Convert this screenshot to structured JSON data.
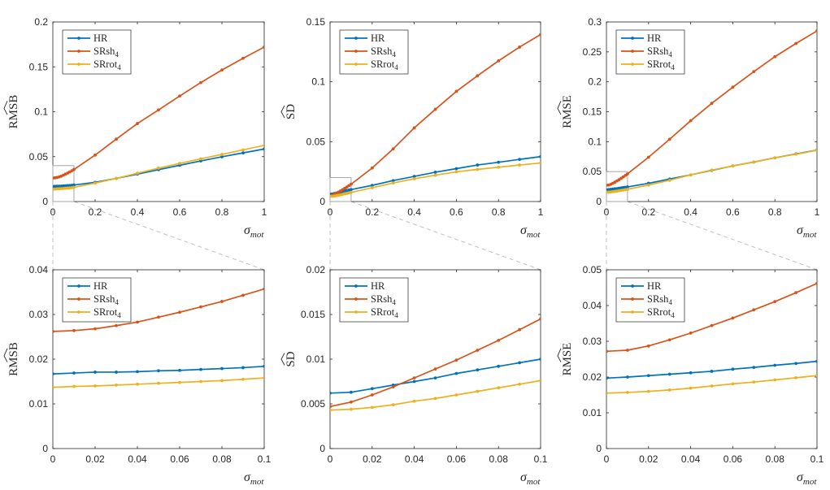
{
  "figure": {
    "xlabel_symbol": "σ",
    "xlabel_subscript": "mot",
    "legend_entries": [
      {
        "base": "HR",
        "sub": ""
      },
      {
        "base": "SRsh",
        "sub": "4"
      },
      {
        "base": "SRrot",
        "sub": "4"
      }
    ]
  },
  "colors": {
    "HR": "#0072bd",
    "SRsh4": "#d95319",
    "SRrot4": "#edb120",
    "axis": "#262626",
    "zoom_box": "#a6a6a6",
    "connector": "#bfbfbf"
  },
  "chart_data": [
    {
      "type": "line",
      "panel": "top-left",
      "title": "",
      "ylabel": "RMSB",
      "xlim": [
        0,
        1
      ],
      "ylim": [
        0,
        0.2
      ],
      "xticks": [
        0,
        0.2,
        0.4,
        0.6,
        0.8,
        1
      ],
      "xtick_labels": [
        "0",
        "0.2",
        "0.4",
        "0.6",
        "0.8",
        "1"
      ],
      "yticks": [
        0,
        0.05,
        0.1,
        0.15,
        0.2
      ],
      "ytick_labels": [
        "0",
        "0.05",
        "0.1",
        "0.15",
        "0.2"
      ],
      "legend_position": "top-left",
      "zoom_box": {
        "x": [
          0,
          0.1
        ],
        "y": [
          0,
          0.04
        ]
      },
      "series": [
        {
          "name": "HR",
          "x": [
            0,
            0.01,
            0.02,
            0.03,
            0.04,
            0.05,
            0.06,
            0.07,
            0.08,
            0.09,
            0.1,
            0.2,
            0.3,
            0.4,
            0.5,
            0.6,
            0.7,
            0.8,
            0.9,
            1.0
          ],
          "values": [
            0.0167,
            0.0169,
            0.0171,
            0.0171,
            0.0172,
            0.0174,
            0.0175,
            0.0177,
            0.0179,
            0.0181,
            0.0184,
            0.0214,
            0.0257,
            0.0305,
            0.0355,
            0.0404,
            0.0452,
            0.0498,
            0.0542,
            0.0585
          ]
        },
        {
          "name": "SRsh4",
          "x": [
            0,
            0.01,
            0.02,
            0.03,
            0.04,
            0.05,
            0.06,
            0.07,
            0.08,
            0.09,
            0.1,
            0.2,
            0.3,
            0.4,
            0.5,
            0.6,
            0.7,
            0.8,
            0.9,
            1.0
          ],
          "values": [
            0.0262,
            0.0264,
            0.0268,
            0.0275,
            0.0283,
            0.0294,
            0.0305,
            0.0317,
            0.0329,
            0.0343,
            0.0357,
            0.0517,
            0.0695,
            0.0868,
            0.102,
            0.1175,
            0.1325,
            0.1465,
            0.1595,
            0.172
          ]
        },
        {
          "name": "SRrot4",
          "x": [
            0,
            0.01,
            0.02,
            0.03,
            0.04,
            0.05,
            0.06,
            0.07,
            0.08,
            0.09,
            0.1,
            0.2,
            0.3,
            0.4,
            0.5,
            0.6,
            0.7,
            0.8,
            0.9,
            1.0
          ],
          "values": [
            0.0137,
            0.0139,
            0.014,
            0.0142,
            0.0144,
            0.0146,
            0.0148,
            0.015,
            0.0152,
            0.0155,
            0.0158,
            0.0205,
            0.0258,
            0.0315,
            0.0372,
            0.0425,
            0.0475,
            0.0525,
            0.0575,
            0.0625
          ]
        }
      ]
    },
    {
      "type": "line",
      "panel": "top-middle",
      "title": "",
      "ylabel": "SD",
      "xlim": [
        0,
        1
      ],
      "ylim": [
        0,
        0.15
      ],
      "xticks": [
        0,
        0.2,
        0.4,
        0.6,
        0.8,
        1
      ],
      "xtick_labels": [
        "0",
        "0.2",
        "0.4",
        "0.6",
        "0.8",
        "1"
      ],
      "yticks": [
        0,
        0.05,
        0.1,
        0.15
      ],
      "ytick_labels": [
        "0",
        "0.05",
        "0.1",
        "0.15"
      ],
      "legend_position": "top-left",
      "zoom_box": {
        "x": [
          0,
          0.1
        ],
        "y": [
          0,
          0.02
        ]
      },
      "series": [
        {
          "name": "HR",
          "x": [
            0,
            0.01,
            0.02,
            0.03,
            0.04,
            0.05,
            0.06,
            0.07,
            0.08,
            0.09,
            0.1,
            0.2,
            0.3,
            0.4,
            0.5,
            0.6,
            0.7,
            0.8,
            0.9,
            1.0
          ],
          "values": [
            0.0062,
            0.0063,
            0.0067,
            0.0071,
            0.0075,
            0.0079,
            0.0084,
            0.0088,
            0.0092,
            0.0096,
            0.01,
            0.0135,
            0.0175,
            0.021,
            0.0245,
            0.0275,
            0.0305,
            0.0328,
            0.0352,
            0.0375
          ]
        },
        {
          "name": "SRsh4",
          "x": [
            0,
            0.01,
            0.02,
            0.03,
            0.04,
            0.05,
            0.06,
            0.07,
            0.08,
            0.09,
            0.1,
            0.2,
            0.3,
            0.4,
            0.5,
            0.6,
            0.7,
            0.8,
            0.9,
            1.0
          ],
          "values": [
            0.0047,
            0.0052,
            0.006,
            0.0069,
            0.0079,
            0.0089,
            0.0099,
            0.011,
            0.0121,
            0.0133,
            0.0145,
            0.028,
            0.044,
            0.0615,
            0.077,
            0.092,
            0.105,
            0.1175,
            0.129,
            0.1395
          ]
        },
        {
          "name": "SRrot4",
          "x": [
            0,
            0.01,
            0.02,
            0.03,
            0.04,
            0.05,
            0.06,
            0.07,
            0.08,
            0.09,
            0.1,
            0.2,
            0.3,
            0.4,
            0.5,
            0.6,
            0.7,
            0.8,
            0.9,
            1.0
          ],
          "values": [
            0.0043,
            0.0044,
            0.0046,
            0.0049,
            0.0053,
            0.0056,
            0.006,
            0.0064,
            0.0068,
            0.0072,
            0.0076,
            0.0115,
            0.0155,
            0.019,
            0.022,
            0.0248,
            0.0268,
            0.0287,
            0.0305,
            0.0322
          ]
        }
      ]
    },
    {
      "type": "line",
      "panel": "top-right",
      "title": "",
      "ylabel": "RMSE",
      "xlim": [
        0,
        1
      ],
      "ylim": [
        0,
        0.3
      ],
      "xticks": [
        0,
        0.2,
        0.4,
        0.6,
        0.8,
        1
      ],
      "xtick_labels": [
        "0",
        "0.2",
        "0.4",
        "0.6",
        "0.8",
        "1"
      ],
      "yticks": [
        0,
        0.05,
        0.1,
        0.15,
        0.2,
        0.25,
        0.3
      ],
      "ytick_labels": [
        "0",
        "0.05",
        "0.1",
        "0.15",
        "0.2",
        "0.25",
        "0.3"
      ],
      "legend_position": "top-left",
      "zoom_box": {
        "x": [
          0,
          0.1
        ],
        "y": [
          0,
          0.05
        ]
      },
      "series": [
        {
          "name": "HR",
          "x": [
            0,
            0.01,
            0.02,
            0.03,
            0.04,
            0.05,
            0.06,
            0.07,
            0.08,
            0.09,
            0.1,
            0.2,
            0.3,
            0.4,
            0.5,
            0.6,
            0.7,
            0.8,
            0.9,
            1.0
          ],
          "values": [
            0.0197,
            0.02,
            0.0204,
            0.0208,
            0.0212,
            0.0216,
            0.0222,
            0.0227,
            0.0233,
            0.0238,
            0.0244,
            0.0305,
            0.0375,
            0.0445,
            0.052,
            0.0595,
            0.066,
            0.073,
            0.0795,
            0.086
          ]
        },
        {
          "name": "SRsh4",
          "x": [
            0,
            0.01,
            0.02,
            0.03,
            0.04,
            0.05,
            0.06,
            0.07,
            0.08,
            0.09,
            0.1,
            0.2,
            0.3,
            0.4,
            0.5,
            0.6,
            0.7,
            0.8,
            0.9,
            1.0
          ],
          "values": [
            0.0272,
            0.0275,
            0.0287,
            0.0304,
            0.0323,
            0.0344,
            0.0365,
            0.0388,
            0.0411,
            0.0436,
            0.0462,
            0.074,
            0.104,
            0.135,
            0.164,
            0.191,
            0.217,
            0.242,
            0.264,
            0.285
          ]
        },
        {
          "name": "SRrot4",
          "x": [
            0,
            0.01,
            0.02,
            0.03,
            0.04,
            0.05,
            0.06,
            0.07,
            0.08,
            0.09,
            0.1,
            0.2,
            0.3,
            0.4,
            0.5,
            0.6,
            0.7,
            0.8,
            0.9,
            1.0
          ],
          "values": [
            0.0155,
            0.0157,
            0.016,
            0.0164,
            0.0169,
            0.0175,
            0.0181,
            0.0186,
            0.0192,
            0.0198,
            0.0204,
            0.0275,
            0.0355,
            0.0445,
            0.0525,
            0.0595,
            0.066,
            0.073,
            0.079,
            0.0855
          ]
        }
      ]
    },
    {
      "type": "line",
      "panel": "bottom-left",
      "title": "",
      "ylabel": "RMSB",
      "xlim": [
        0,
        0.1
      ],
      "ylim": [
        0,
        0.04
      ],
      "xticks": [
        0,
        0.02,
        0.04,
        0.06,
        0.08,
        0.1
      ],
      "xtick_labels": [
        "0",
        "0.02",
        "0.04",
        "0.06",
        "0.08",
        "0.1"
      ],
      "yticks": [
        0,
        0.01,
        0.02,
        0.03,
        0.04
      ],
      "ytick_labels": [
        "0",
        "0.01",
        "0.02",
        "0.03",
        "0.04"
      ],
      "legend_position": "top-left",
      "series": [
        {
          "name": "HR",
          "x": [
            0,
            0.01,
            0.02,
            0.03,
            0.04,
            0.05,
            0.06,
            0.07,
            0.08,
            0.09,
            0.1
          ],
          "values": [
            0.0167,
            0.0169,
            0.0171,
            0.0171,
            0.0172,
            0.0174,
            0.0175,
            0.0177,
            0.0179,
            0.0181,
            0.0184
          ]
        },
        {
          "name": "SRsh4",
          "x": [
            0,
            0.01,
            0.02,
            0.03,
            0.04,
            0.05,
            0.06,
            0.07,
            0.08,
            0.09,
            0.1
          ],
          "values": [
            0.0262,
            0.0264,
            0.0268,
            0.0275,
            0.0283,
            0.0294,
            0.0305,
            0.0317,
            0.0329,
            0.0343,
            0.0357
          ]
        },
        {
          "name": "SRrot4",
          "x": [
            0,
            0.01,
            0.02,
            0.03,
            0.04,
            0.05,
            0.06,
            0.07,
            0.08,
            0.09,
            0.1
          ],
          "values": [
            0.0137,
            0.0139,
            0.014,
            0.0142,
            0.0144,
            0.0146,
            0.0148,
            0.015,
            0.0152,
            0.0155,
            0.0158
          ]
        }
      ]
    },
    {
      "type": "line",
      "panel": "bottom-middle",
      "title": "",
      "ylabel": "SD",
      "xlim": [
        0,
        0.1
      ],
      "ylim": [
        0,
        0.02
      ],
      "xticks": [
        0,
        0.02,
        0.04,
        0.06,
        0.08,
        0.1
      ],
      "xtick_labels": [
        "0",
        "0.02",
        "0.04",
        "0.06",
        "0.08",
        "0.1"
      ],
      "yticks": [
        0,
        0.005,
        0.01,
        0.015,
        0.02
      ],
      "ytick_labels": [
        "0",
        "0.005",
        "0.01",
        "0.015",
        "0.02"
      ],
      "legend_position": "top-left",
      "series": [
        {
          "name": "HR",
          "x": [
            0,
            0.01,
            0.02,
            0.03,
            0.04,
            0.05,
            0.06,
            0.07,
            0.08,
            0.09,
            0.1
          ],
          "values": [
            0.0062,
            0.0063,
            0.0067,
            0.0071,
            0.0075,
            0.0079,
            0.0084,
            0.0088,
            0.0092,
            0.0096,
            0.01
          ]
        },
        {
          "name": "SRsh4",
          "x": [
            0,
            0.01,
            0.02,
            0.03,
            0.04,
            0.05,
            0.06,
            0.07,
            0.08,
            0.09,
            0.1
          ],
          "values": [
            0.0047,
            0.0052,
            0.006,
            0.0069,
            0.0079,
            0.0089,
            0.0099,
            0.011,
            0.0121,
            0.0133,
            0.0145
          ]
        },
        {
          "name": "SRrot4",
          "x": [
            0,
            0.01,
            0.02,
            0.03,
            0.04,
            0.05,
            0.06,
            0.07,
            0.08,
            0.09,
            0.1
          ],
          "values": [
            0.0043,
            0.0044,
            0.0046,
            0.0049,
            0.0053,
            0.0056,
            0.006,
            0.0064,
            0.0068,
            0.0072,
            0.0076
          ]
        }
      ]
    },
    {
      "type": "line",
      "panel": "bottom-right",
      "title": "",
      "ylabel": "RMSE",
      "xlim": [
        0,
        0.1
      ],
      "ylim": [
        0,
        0.05
      ],
      "xticks": [
        0,
        0.02,
        0.04,
        0.06,
        0.08,
        0.1
      ],
      "xtick_labels": [
        "0",
        "0.02",
        "0.04",
        "0.06",
        "0.08",
        "0.1"
      ],
      "yticks": [
        0,
        0.01,
        0.02,
        0.03,
        0.04,
        0.05
      ],
      "ytick_labels": [
        "0",
        "0.01",
        "0.02",
        "0.03",
        "0.04",
        "0.05"
      ],
      "legend_position": "top-left",
      "series": [
        {
          "name": "HR",
          "x": [
            0,
            0.01,
            0.02,
            0.03,
            0.04,
            0.05,
            0.06,
            0.07,
            0.08,
            0.09,
            0.1
          ],
          "values": [
            0.0197,
            0.02,
            0.0204,
            0.0208,
            0.0212,
            0.0216,
            0.0222,
            0.0227,
            0.0233,
            0.0238,
            0.0244
          ]
        },
        {
          "name": "SRsh4",
          "x": [
            0,
            0.01,
            0.02,
            0.03,
            0.04,
            0.05,
            0.06,
            0.07,
            0.08,
            0.09,
            0.1
          ],
          "values": [
            0.0272,
            0.0275,
            0.0287,
            0.0304,
            0.0323,
            0.0344,
            0.0365,
            0.0388,
            0.0411,
            0.0436,
            0.0462
          ]
        },
        {
          "name": "SRrot4",
          "x": [
            0,
            0.01,
            0.02,
            0.03,
            0.04,
            0.05,
            0.06,
            0.07,
            0.08,
            0.09,
            0.1
          ],
          "values": [
            0.0155,
            0.0157,
            0.016,
            0.0164,
            0.0169,
            0.0175,
            0.0181,
            0.0186,
            0.0192,
            0.0198,
            0.0204
          ]
        }
      ]
    }
  ]
}
